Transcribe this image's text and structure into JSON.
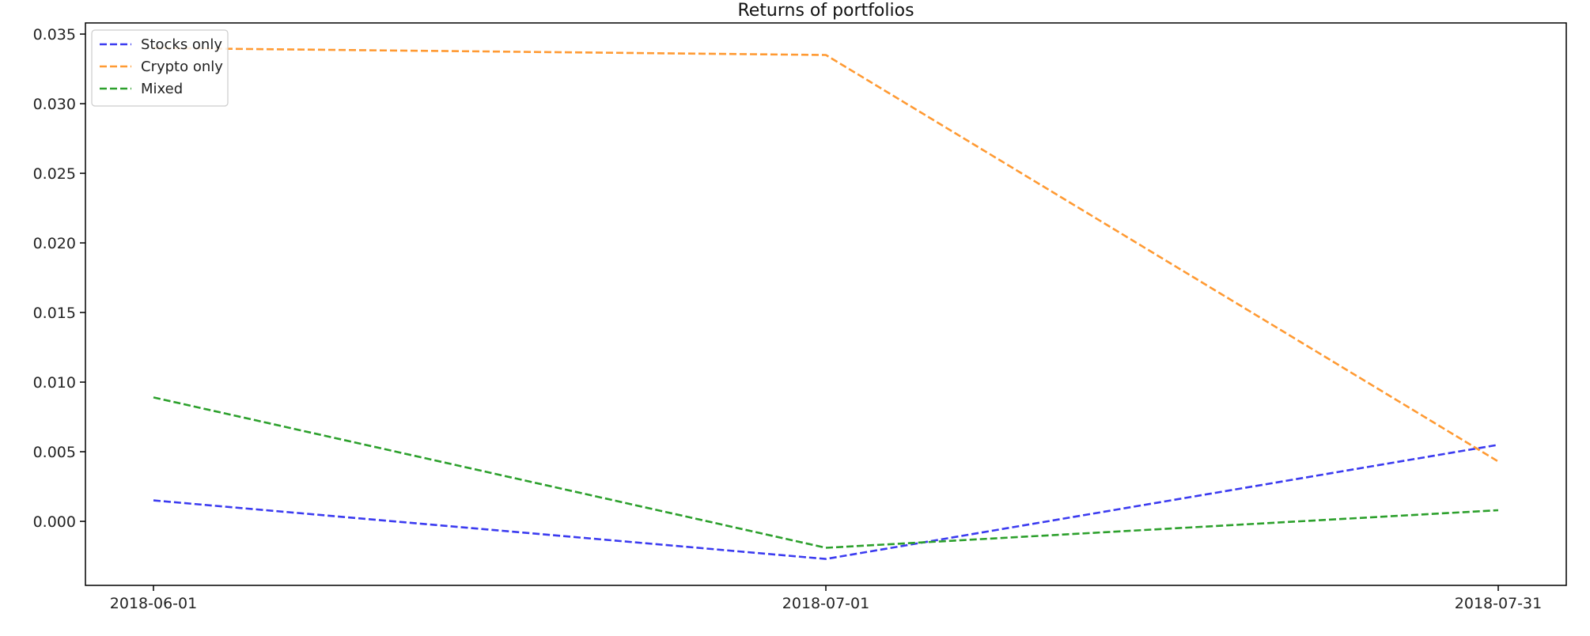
{
  "chart_data": {
    "type": "line",
    "title": "Returns of portfolios",
    "xlabel": "",
    "ylabel": "",
    "x": [
      "2018-06-01",
      "2018-07-01",
      "2018-07-31"
    ],
    "x_tick_labels": [
      "2018-06-01",
      "2018-07-01",
      "2018-07-31"
    ],
    "y_ticks": [
      0.0,
      0.005,
      0.01,
      0.015,
      0.02,
      0.025,
      0.03,
      0.035
    ],
    "y_tick_labels": [
      "0.000",
      "0.005",
      "0.010",
      "0.015",
      "0.020",
      "0.025",
      "0.030",
      "0.035"
    ],
    "ylim": [
      -0.0046,
      0.0358
    ],
    "grid": false,
    "legend_position": "top-left",
    "series": [
      {
        "name": "Stocks only",
        "color": "#3b3bf0",
        "style": "dashed",
        "values": [
          0.0015,
          -0.0027,
          0.0055
        ]
      },
      {
        "name": "Crypto only",
        "color": "#ff9a33",
        "style": "dashed",
        "values": [
          0.034,
          0.0335,
          0.0043
        ]
      },
      {
        "name": "Mixed",
        "color": "#2ca02c",
        "style": "dashed",
        "values": [
          0.0089,
          -0.0019,
          0.0008
        ]
      }
    ]
  }
}
